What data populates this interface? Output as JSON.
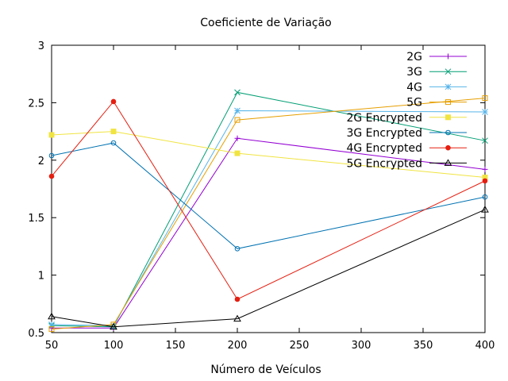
{
  "chart_data": {
    "type": "line",
    "title": "Coeficiente de Variação",
    "xlabel": "Número de Veículos",
    "ylabel": "",
    "x": [
      50,
      100,
      200,
      400
    ],
    "xlim": [
      50,
      400
    ],
    "ylim": [
      0.5,
      3
    ],
    "xticks": [
      50,
      100,
      150,
      200,
      250,
      300,
      350,
      400
    ],
    "yticks": [
      0.5,
      1,
      1.5,
      2,
      2.5,
      3
    ],
    "xtick_labels": [
      "50",
      "100",
      "150",
      "200",
      "250",
      "300",
      "350",
      "400"
    ],
    "ytick_labels": [
      "0.5",
      "1",
      "1.5",
      "2",
      "2.5",
      "3"
    ],
    "grid": false,
    "legend_position": "top-right",
    "series": [
      {
        "name": "2G",
        "values": [
          0.54,
          0.54,
          2.19,
          1.92
        ],
        "color": "#9400d3",
        "marker": "plus"
      },
      {
        "name": "3G",
        "values": [
          0.56,
          0.55,
          2.59,
          2.17
        ],
        "color": "#009e73",
        "marker": "cross"
      },
      {
        "name": "4G",
        "values": [
          0.57,
          0.56,
          2.43,
          2.42
        ],
        "color": "#56b4e9",
        "marker": "star"
      },
      {
        "name": "5G",
        "values": [
          0.53,
          0.57,
          2.35,
          2.54
        ],
        "color": "#e69f00",
        "marker": "square-open"
      },
      {
        "name": "2G Encrypted",
        "values": [
          2.22,
          2.25,
          2.06,
          1.85
        ],
        "color": "#f0e442",
        "marker": "square-filled"
      },
      {
        "name": "3G Encrypted",
        "values": [
          2.04,
          2.15,
          1.23,
          1.68
        ],
        "color": "#0072b2",
        "marker": "circle-open"
      },
      {
        "name": "4G Encrypted",
        "values": [
          1.86,
          2.51,
          0.79,
          1.82
        ],
        "color": "#e51e10",
        "marker": "circle-filled"
      },
      {
        "name": "5G Encrypted",
        "values": [
          0.64,
          0.55,
          0.62,
          1.57
        ],
        "color": "#000000",
        "marker": "triangle-open"
      }
    ]
  }
}
